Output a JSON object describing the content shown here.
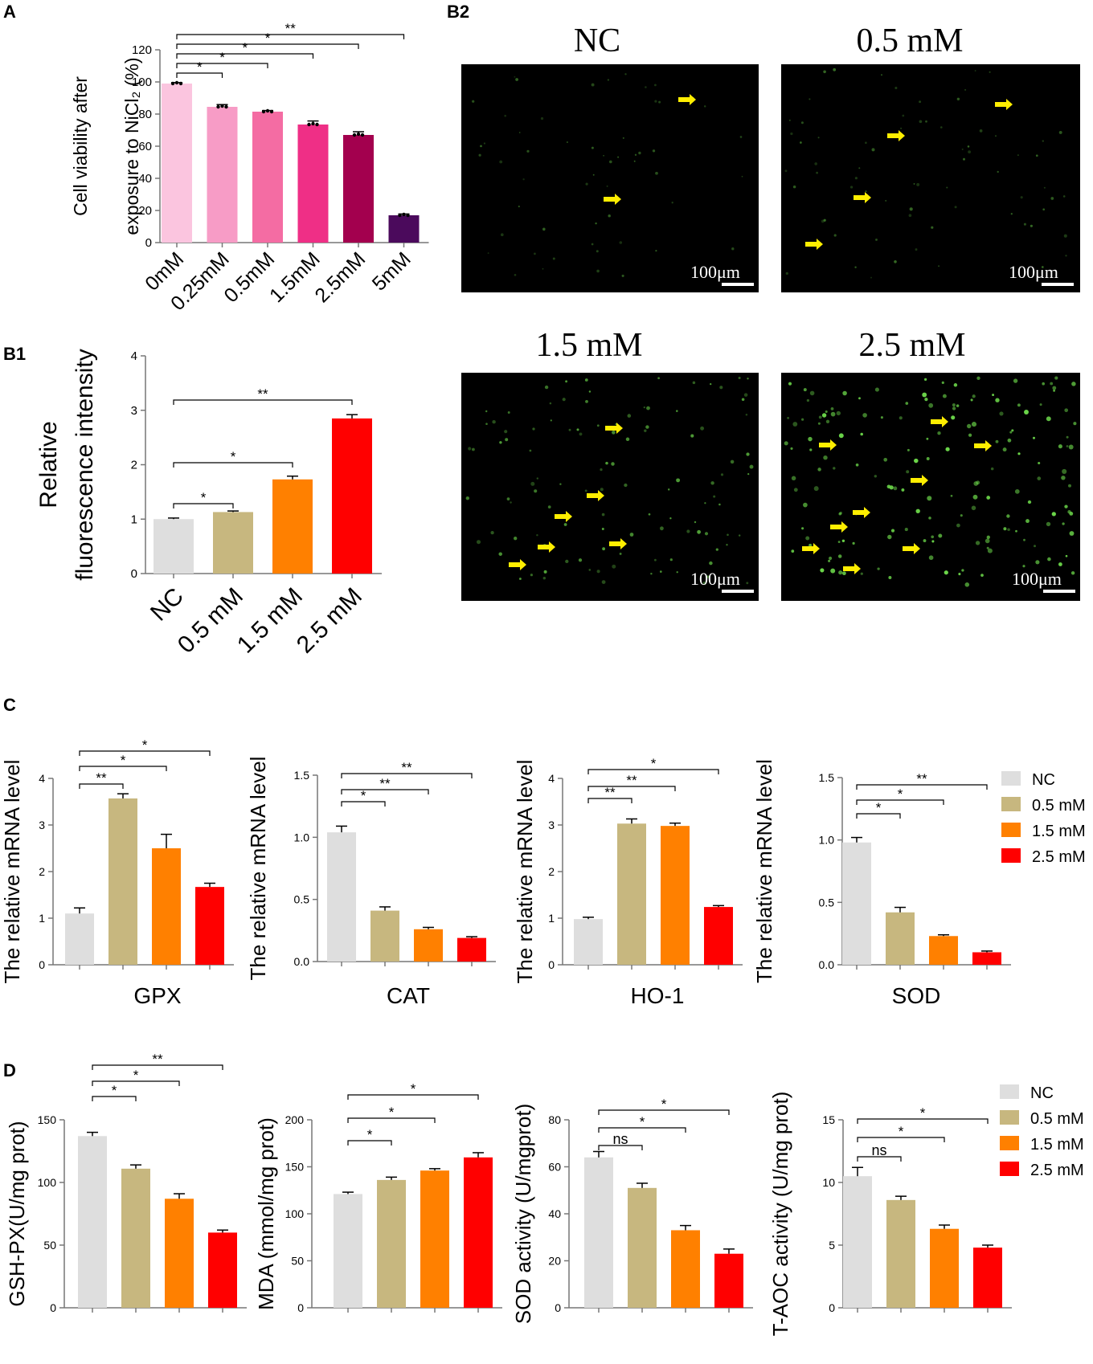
{
  "colors": {
    "panel_a": [
      "#fbc5df",
      "#f79cc6",
      "#f46ca3",
      "#ef2f86",
      "#a3004e",
      "#4b0a5c"
    ],
    "groups": [
      "#dedede",
      "#c7b77f",
      "#ff8000",
      "#ff0000"
    ],
    "micrograph_bg": "#000000",
    "arrow": "#ffee00",
    "cell": "#6cd84a",
    "text": "#000000"
  },
  "panel_labels": {
    "a": "A",
    "b1": "B1",
    "b2": "B2",
    "c": "C",
    "d": "D"
  },
  "legend": {
    "labels": [
      "NC",
      "0.5 mM",
      "1.5 mM",
      "2.5 mM"
    ]
  },
  "micrographs": {
    "titles": [
      "NC",
      "0.5 mM",
      "1.5 mM",
      "2.5 mM"
    ],
    "scale_label": "100μm"
  },
  "chart_data": [
    {
      "id": "A",
      "type": "bar",
      "ylabel_lines": [
        "Cell viability after",
        "exposure to NiCl₂ (%)"
      ],
      "categories": [
        "0mM",
        "0.25mM",
        "0.5mM",
        "1.5mM",
        "2.5mM",
        "5mM"
      ],
      "values": [
        99,
        84.5,
        81.5,
        73.5,
        67,
        17
      ],
      "errors": [
        0.6,
        1.4,
        0.7,
        2.2,
        2.0,
        0.8
      ],
      "ylim": [
        0,
        120
      ],
      "yticks": [
        0,
        20,
        40,
        60,
        80,
        100,
        120
      ],
      "significance": [
        {
          "from": 0,
          "to": 1,
          "label": "*"
        },
        {
          "from": 0,
          "to": 2,
          "label": "*"
        },
        {
          "from": 0,
          "to": 3,
          "label": "*"
        },
        {
          "from": 0,
          "to": 4,
          "label": "*"
        },
        {
          "from": 0,
          "to": 5,
          "label": "**"
        }
      ]
    },
    {
      "id": "B1",
      "type": "bar",
      "ylabel_lines": [
        "Relative",
        "fluorescence intensity"
      ],
      "categories": [
        "NC",
        "0.5 mM",
        "1.5 mM",
        "2.5 mM"
      ],
      "values": [
        1.0,
        1.13,
        1.73,
        2.85
      ],
      "errors": [
        0.02,
        0.02,
        0.06,
        0.07
      ],
      "ylim": [
        0,
        4
      ],
      "yticks": [
        0,
        1,
        2,
        3,
        4
      ],
      "significance": [
        {
          "from": 0,
          "to": 1,
          "label": "*"
        },
        {
          "from": 0,
          "to": 2,
          "label": "*"
        },
        {
          "from": 0,
          "to": 3,
          "label": "**"
        }
      ]
    },
    {
      "id": "C1",
      "type": "bar",
      "ylabel": "The relative mRNA level",
      "xlabel": "GPX",
      "categories": [
        "NC",
        "0.5 mM",
        "1.5 mM",
        "2.5 mM"
      ],
      "values": [
        1.1,
        3.57,
        2.5,
        1.67
      ],
      "errors": [
        0.12,
        0.1,
        0.3,
        0.08
      ],
      "ylim": [
        0,
        4
      ],
      "yticks": [
        "0",
        "1",
        "2",
        "3",
        "4"
      ],
      "significance": [
        {
          "from": 0,
          "to": 1,
          "label": "**"
        },
        {
          "from": 0,
          "to": 2,
          "label": "*"
        },
        {
          "from": 0,
          "to": 3,
          "label": "*"
        }
      ]
    },
    {
      "id": "C2",
      "type": "bar",
      "ylabel": "The relative mRNA level",
      "xlabel": "CAT",
      "categories": [
        "NC",
        "0.5 mM",
        "1.5 mM",
        "2.5 mM"
      ],
      "values": [
        1.04,
        0.41,
        0.26,
        0.19
      ],
      "errors": [
        0.05,
        0.03,
        0.015,
        0.01
      ],
      "ylim": [
        0,
        1.5
      ],
      "yticks": [
        "0.0",
        "0.5",
        "1.0",
        "1.5"
      ],
      "significance": [
        {
          "from": 0,
          "to": 1,
          "label": "*"
        },
        {
          "from": 0,
          "to": 2,
          "label": "**"
        },
        {
          "from": 0,
          "to": 3,
          "label": "**"
        }
      ]
    },
    {
      "id": "C3",
      "type": "bar",
      "ylabel": "The relative mRNA level",
      "xlabel": "HO-1",
      "categories": [
        "NC",
        "0.5 mM",
        "1.5 mM",
        "2.5 mM"
      ],
      "values": [
        0.98,
        3.03,
        2.98,
        1.24
      ],
      "errors": [
        0.04,
        0.1,
        0.06,
        0.03
      ],
      "ylim": [
        0,
        4
      ],
      "yticks": [
        "0",
        "1",
        "2",
        "3",
        "4"
      ],
      "significance": [
        {
          "from": 0,
          "to": 1,
          "label": "**"
        },
        {
          "from": 0,
          "to": 2,
          "label": "**"
        },
        {
          "from": 0,
          "to": 3,
          "label": "*"
        }
      ]
    },
    {
      "id": "C4",
      "type": "bar",
      "ylabel": "The relative mRNA level",
      "xlabel": "SOD",
      "categories": [
        "NC",
        "0.5 mM",
        "1.5 mM",
        "2.5 mM"
      ],
      "values": [
        0.98,
        0.42,
        0.23,
        0.1
      ],
      "errors": [
        0.04,
        0.04,
        0.01,
        0.01
      ],
      "ylim": [
        0,
        1.5
      ],
      "yticks": [
        "0.0",
        "0.5",
        "1.0",
        "1.5"
      ],
      "significance": [
        {
          "from": 0,
          "to": 1,
          "label": "*"
        },
        {
          "from": 0,
          "to": 2,
          "label": "*"
        },
        {
          "from": 0,
          "to": 3,
          "label": "**"
        }
      ]
    },
    {
      "id": "D1",
      "type": "bar",
      "ylabel": "GSH-PX(U/mg prot)",
      "categories": [
        "NC",
        "0.5 mM",
        "1.5 mM",
        "2.5 mM"
      ],
      "values": [
        137,
        111,
        87,
        60
      ],
      "errors": [
        3,
        3,
        4,
        2
      ],
      "ylim": [
        0,
        150
      ],
      "yticks": [
        "0",
        "50",
        "100",
        "150"
      ],
      "significance": [
        {
          "from": 0,
          "to": 1,
          "label": "*"
        },
        {
          "from": 0,
          "to": 2,
          "label": "*"
        },
        {
          "from": 0,
          "to": 3,
          "label": "**"
        }
      ]
    },
    {
      "id": "D2",
      "type": "bar",
      "ylabel": "MDA (mmol/mg prot)",
      "categories": [
        "NC",
        "0.5 mM",
        "1.5 mM",
        "2.5 mM"
      ],
      "values": [
        121,
        136,
        146,
        160
      ],
      "errors": [
        2,
        3,
        2,
        5
      ],
      "ylim": [
        0,
        200
      ],
      "yticks": [
        "0",
        "50",
        "100",
        "150",
        "200"
      ],
      "significance": [
        {
          "from": 0,
          "to": 1,
          "label": "*"
        },
        {
          "from": 0,
          "to": 2,
          "label": "*"
        },
        {
          "from": 0,
          "to": 3,
          "label": "*"
        }
      ]
    },
    {
      "id": "D3",
      "type": "bar",
      "ylabel": "SOD activity (U/mgprot)",
      "categories": [
        "NC",
        "0.5 mM",
        "1.5 mM",
        "2.5 mM"
      ],
      "values": [
        64,
        51,
        33,
        23
      ],
      "errors": [
        2.5,
        2,
        2,
        2
      ],
      "ylim": [
        0,
        80
      ],
      "yticks": [
        "0",
        "20",
        "40",
        "60",
        "80"
      ],
      "significance": [
        {
          "from": 0,
          "to": 1,
          "label": "ns"
        },
        {
          "from": 0,
          "to": 2,
          "label": "*"
        },
        {
          "from": 0,
          "to": 3,
          "label": "*"
        }
      ]
    },
    {
      "id": "D4",
      "type": "bar",
      "ylabel": "T-AOC activity (U/mg prot)",
      "categories": [
        "NC",
        "0.5 mM",
        "1.5 mM",
        "2.5 mM"
      ],
      "values": [
        10.5,
        8.6,
        6.3,
        4.8
      ],
      "errors": [
        0.7,
        0.3,
        0.3,
        0.2
      ],
      "ylim": [
        0,
        15
      ],
      "yticks": [
        "0",
        "5",
        "10",
        "15"
      ],
      "significance": [
        {
          "from": 0,
          "to": 1,
          "label": "ns"
        },
        {
          "from": 0,
          "to": 2,
          "label": "*"
        },
        {
          "from": 0,
          "to": 3,
          "label": "*"
        }
      ]
    }
  ]
}
